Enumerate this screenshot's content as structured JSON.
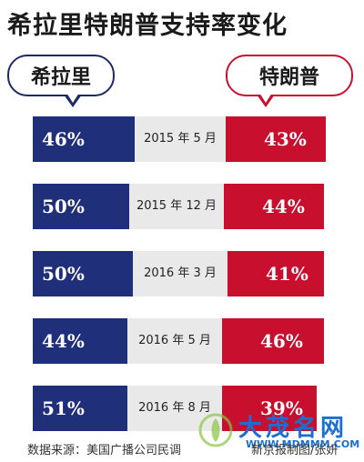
{
  "title": "希拉里特朗普支持率变化",
  "legend": {
    "left": "希拉里",
    "right": "特朗普"
  },
  "colors": {
    "clinton": "#1f2f7a",
    "trump": "#c8102e",
    "date_band": "#e9e9e9"
  },
  "chart_data": {
    "type": "bar",
    "title": "希拉里特朗普支持率变化",
    "categories": [
      "2015 年 5 月",
      "2015 年 12 月",
      "2016 年 3 月",
      "2016 年 5 月",
      "2016 年 8 月"
    ],
    "series": [
      {
        "name": "希拉里",
        "values": [
          46,
          50,
          50,
          44,
          51
        ],
        "labels": [
          "46%",
          "50%",
          "50%",
          "44%",
          "51%"
        ]
      },
      {
        "name": "特朗普",
        "values": [
          43,
          44,
          41,
          46,
          39
        ],
        "labels": [
          "43%",
          "44%",
          "41%",
          "46%",
          "39%"
        ]
      }
    ],
    "unit": "%"
  },
  "footer": {
    "source": "数据来源：美国广播公司民调",
    "credit": "新京报制图/张妍"
  },
  "watermark": {
    "text": "大茂名网",
    "url": "WWW.MDMMM.COM"
  }
}
